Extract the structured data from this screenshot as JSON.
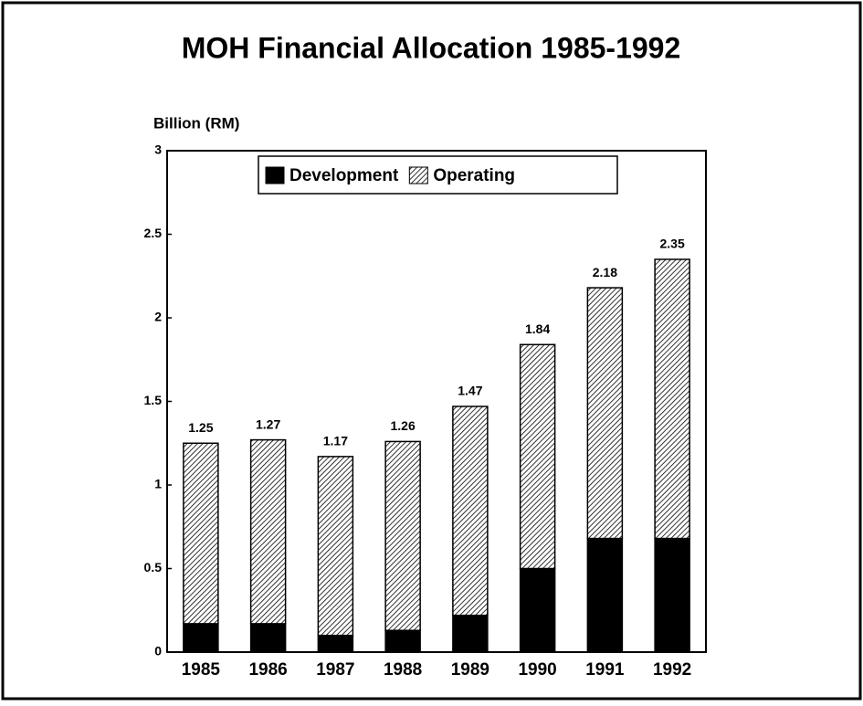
{
  "chart_data": {
    "type": "stacked_bar",
    "title": "MOH Financial Allocation 1985-1992",
    "y_label": "Billion (RM)",
    "categories": [
      "1985",
      "1986",
      "1987",
      "1988",
      "1989",
      "1990",
      "1991",
      "1992"
    ],
    "series": [
      {
        "name": "Development",
        "color": "#000000",
        "values": [
          0.17,
          0.17,
          0.1,
          0.13,
          0.22,
          0.5,
          0.68,
          0.68
        ]
      },
      {
        "name": "Operating",
        "color": "hatch",
        "values": [
          1.08,
          1.1,
          1.07,
          1.13,
          1.25,
          1.34,
          1.5,
          1.67
        ]
      }
    ],
    "totals": [
      1.25,
      1.27,
      1.17,
      1.26,
      1.47,
      1.84,
      2.18,
      2.35
    ],
    "ylim": [
      0,
      3
    ],
    "yticks": [
      0,
      0.5,
      1,
      1.5,
      2,
      2.5,
      3
    ],
    "grid": false,
    "legend": "top"
  }
}
